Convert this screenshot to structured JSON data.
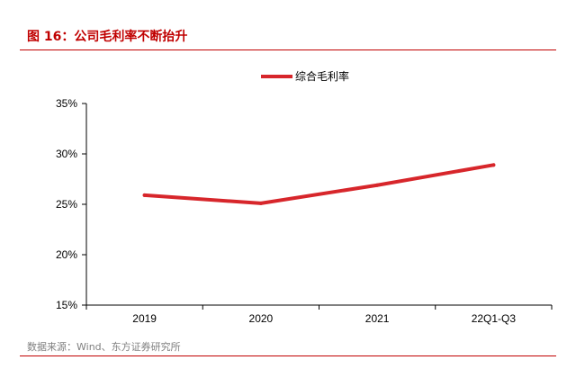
{
  "figure": {
    "title": "图 16：公司毛利率不断抬升",
    "source": "数据来源：Wind、东方证券研究所"
  },
  "chart_data": {
    "type": "line",
    "categories": [
      "2019",
      "2020",
      "2021",
      "22Q1-Q3"
    ],
    "series": [
      {
        "name": "综合毛利率",
        "values": [
          25.9,
          25.1,
          26.9,
          28.9
        ],
        "color": "#d7262b"
      }
    ],
    "yticks": [
      "15%",
      "20%",
      "25%",
      "30%",
      "35%"
    ],
    "ylim": [
      15,
      35
    ],
    "ylabel": "",
    "xlabel": "",
    "legend": "top-center",
    "grid": false
  }
}
